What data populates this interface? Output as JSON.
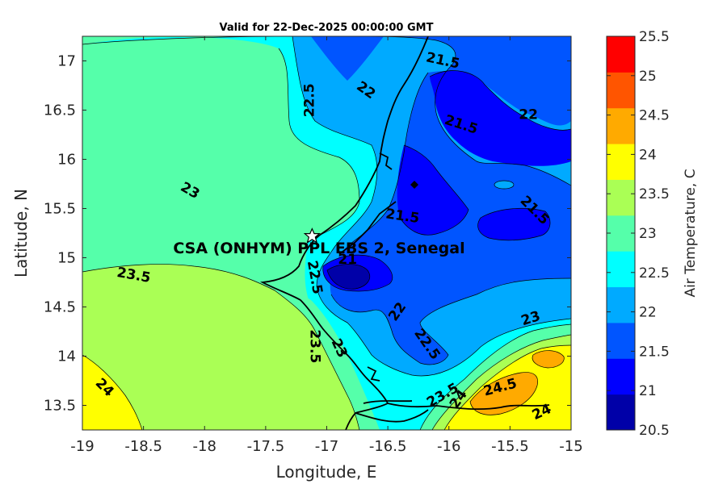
{
  "title": "Valid for 22-Dec-2025 00:00:00 GMT",
  "xlabel": "Longitude, E",
  "ylabel": "Latitude, N",
  "colorbar_label": "Air Temperature, C",
  "site_label": "CSA (ONHYM) PPL EBS 2, Senegal",
  "chart_data": {
    "type": "contour-map",
    "xlim": [
      -19,
      -15
    ],
    "ylim": [
      13.25,
      17.25
    ],
    "x_ticks": [
      "-19",
      "-18.5",
      "-18",
      "-17.5",
      "-17",
      "-16.5",
      "-16",
      "-15.5",
      "-15"
    ],
    "y_ticks": [
      "13.5",
      "14",
      "14.5",
      "15",
      "15.5",
      "16",
      "16.5",
      "17"
    ],
    "colorbar_ticks": [
      "20.5",
      "21",
      "21.5",
      "22",
      "22.5",
      "23",
      "23.5",
      "24",
      "24.5",
      "25",
      "25.5"
    ],
    "colorbar_colors": [
      "#0000a8",
      "#0000ff",
      "#0055ff",
      "#00aaff",
      "#00ffff",
      "#55ffaa",
      "#aaff55",
      "#ffff00",
      "#ffaa00",
      "#ff5500",
      "#ff0000"
    ],
    "site": {
      "lon": -17.12,
      "lat": 15.22
    },
    "contour_labels": [
      {
        "text": "21.5",
        "lon": -16.05,
        "lat": 17.0,
        "rot": 12
      },
      {
        "text": "22",
        "lon": -16.68,
        "lat": 16.7,
        "rot": 35
      },
      {
        "text": "22.5",
        "lon": -17.14,
        "lat": 16.6,
        "rot": -90
      },
      {
        "text": "22",
        "lon": -15.35,
        "lat": 16.45,
        "rot": 0
      },
      {
        "text": "21.5",
        "lon": -15.9,
        "lat": 16.35,
        "rot": 18
      },
      {
        "text": "23",
        "lon": -18.12,
        "lat": 15.68,
        "rot": 30
      },
      {
        "text": "21.5",
        "lon": -15.3,
        "lat": 15.48,
        "rot": 45
      },
      {
        "text": "21.5",
        "lon": -16.38,
        "lat": 15.42,
        "rot": 8
      },
      {
        "text": "23.5",
        "lon": -18.58,
        "lat": 14.82,
        "rot": 10
      },
      {
        "text": "21",
        "lon": -16.83,
        "lat": 14.98,
        "rot": 0
      },
      {
        "text": "22.5",
        "lon": -17.1,
        "lat": 14.8,
        "rot": 80
      },
      {
        "text": "22",
        "lon": -16.42,
        "lat": 14.45,
        "rot": -55
      },
      {
        "text": "23",
        "lon": -15.33,
        "lat": 14.38,
        "rot": -18
      },
      {
        "text": "23.5",
        "lon": -17.1,
        "lat": 14.1,
        "rot": 90
      },
      {
        "text": "23",
        "lon": -16.9,
        "lat": 14.08,
        "rot": 65
      },
      {
        "text": "22.5",
        "lon": -16.18,
        "lat": 14.12,
        "rot": 55
      },
      {
        "text": "24",
        "lon": -18.82,
        "lat": 13.68,
        "rot": 45
      },
      {
        "text": "23.5",
        "lon": -16.05,
        "lat": 13.6,
        "rot": -30
      },
      {
        "text": "24",
        "lon": -15.92,
        "lat": 13.56,
        "rot": -55
      },
      {
        "text": "24.5",
        "lon": -15.58,
        "lat": 13.68,
        "rot": -15
      },
      {
        "text": "24",
        "lon": -15.24,
        "lat": 13.43,
        "rot": -25
      }
    ]
  }
}
